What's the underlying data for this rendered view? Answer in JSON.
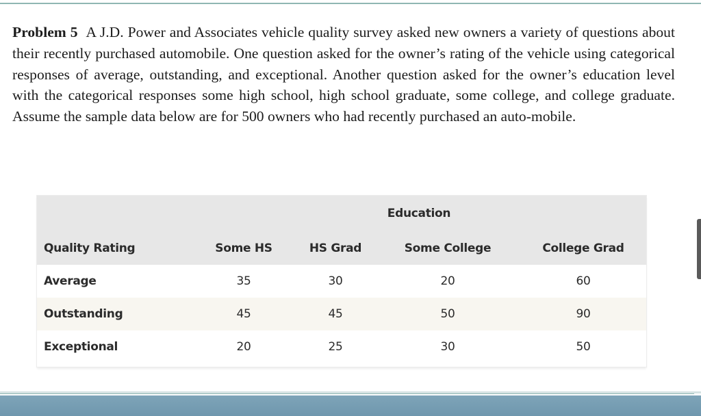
{
  "problem": {
    "label": "Problem 5",
    "text": "A J.D. Power and Associates vehicle quality survey asked new owners a variety of questions about their recently purchased automobile. One question asked for the owner’s rating of the vehicle using categorical responses of average, outstanding, and exceptional. Another question asked for the owner’s education level with the categorical responses some high school, high school graduate, some college, and college graduate. Assume the sample data below are for 500 owners who had recently purchased an auto-mobile."
  },
  "table": {
    "group_header": "Education",
    "row_header": "Quality Rating",
    "columns": [
      "Some HS",
      "HS Grad",
      "Some College",
      "College Grad"
    ],
    "rows": [
      {
        "label": "Average",
        "values": [
          "35",
          "30",
          "20",
          "60"
        ]
      },
      {
        "label": "Outstanding",
        "values": [
          "45",
          "45",
          "50",
          "90"
        ]
      },
      {
        "label": "Exceptional",
        "values": [
          "20",
          "25",
          "30",
          "50"
        ]
      }
    ]
  }
}
